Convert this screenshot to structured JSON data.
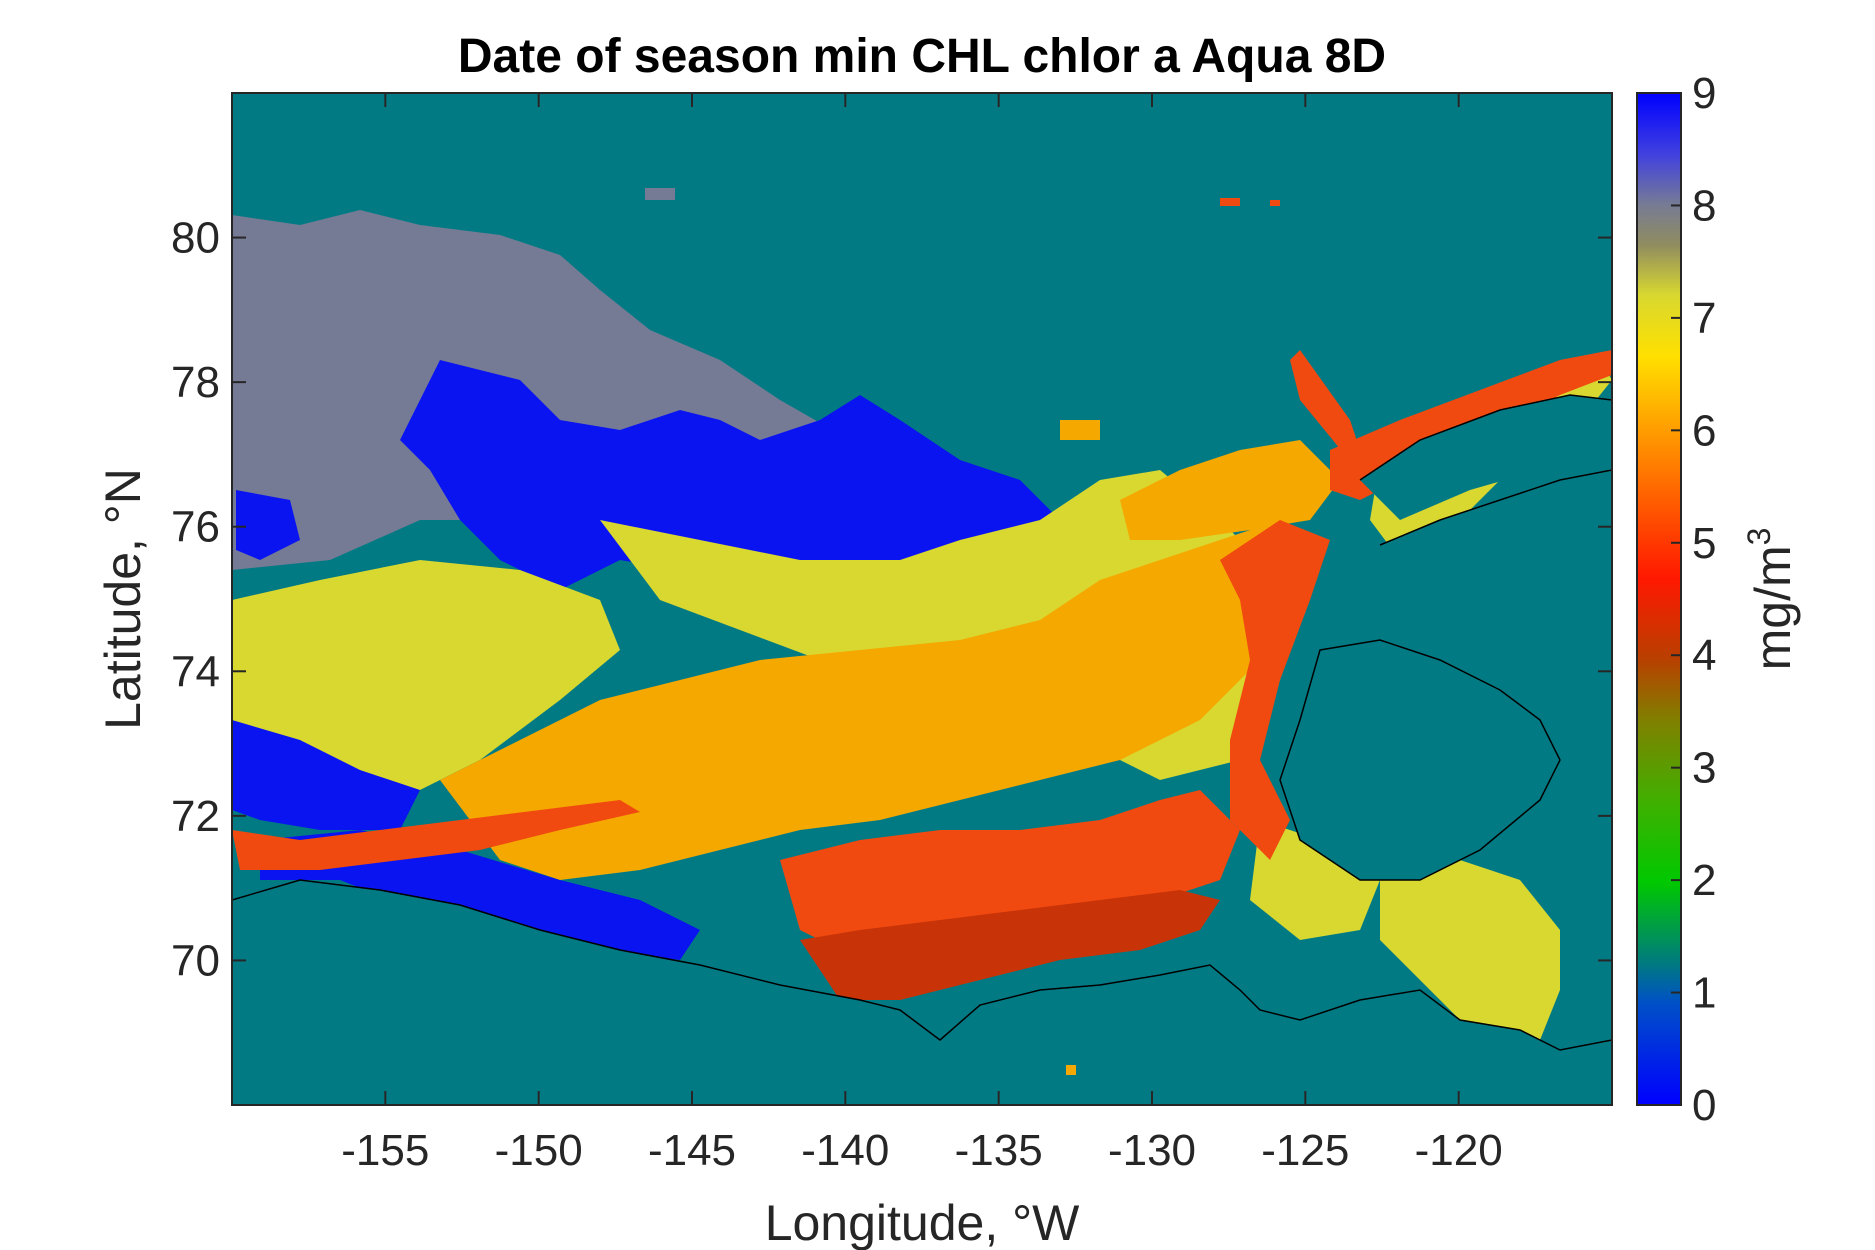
{
  "title": "Date of season min CHL chlor a Aqua 8D",
  "x_axis": {
    "label": "Longitude, °W",
    "ticks": [
      "-155",
      "-150",
      "-145",
      "-140",
      "-135",
      "-130",
      "-125",
      "-120"
    ]
  },
  "y_axis": {
    "label": "Latitude, °N",
    "ticks": [
      "80",
      "78",
      "76",
      "74",
      "72",
      "70"
    ]
  },
  "colorbar": {
    "label": "mg/m",
    "label_superscript": "3",
    "ticks": [
      "9",
      "8",
      "7",
      "6",
      "5",
      "4",
      "3",
      "2",
      "1",
      "0"
    ],
    "range": [
      0,
      9
    ]
  },
  "colors": {
    "ocean_background": "#027a84",
    "low_blue": "#0a14f0",
    "gray": "#767b95",
    "yellow": "#d8d830",
    "orange": "#f5a800",
    "red_orange": "#f04a10",
    "dark_red": "#c83408",
    "coastline": "#000000"
  },
  "chart_data": {
    "type": "heatmap",
    "title": "Date of season min CHL chlor a Aqua 8D",
    "xlabel": "Longitude, °W",
    "ylabel": "Latitude, °N",
    "xlim": [
      -160,
      -115
    ],
    "ylim": [
      68,
      82
    ],
    "x_ticks": [
      -155,
      -150,
      -145,
      -140,
      -135,
      -130,
      -125,
      -120
    ],
    "y_ticks": [
      70,
      72,
      74,
      76,
      78,
      80
    ],
    "colorbar": {
      "label": "mg/m3",
      "min": 0,
      "max": 9,
      "ticks": [
        0,
        1,
        2,
        3,
        4,
        5,
        6,
        7,
        8,
        9
      ]
    },
    "colormap": "jet-like (blue 0 → green → red 4-5 → orange 6 → yellow 7 → gray 8 → blue 9)",
    "fill_value_color": "teal (no data / land / ice)",
    "regions": [
      {
        "description": "northwest offshore (Beaufort Sea north)",
        "approx_value": 8
      },
      {
        "description": "central Beaufort Sea belt",
        "approx_value": 9
      },
      {
        "description": "western Beaufort around 74°N",
        "approx_value": 7
      },
      {
        "description": "central Beaufort 72-74°N",
        "approx_value": 6
      },
      {
        "description": "Mackenzie shelf and Amundsen Gulf",
        "approx_value": 4.5
      },
      {
        "description": "Alaskan coast near 71°N",
        "approx_value": 9
      }
    ]
  }
}
